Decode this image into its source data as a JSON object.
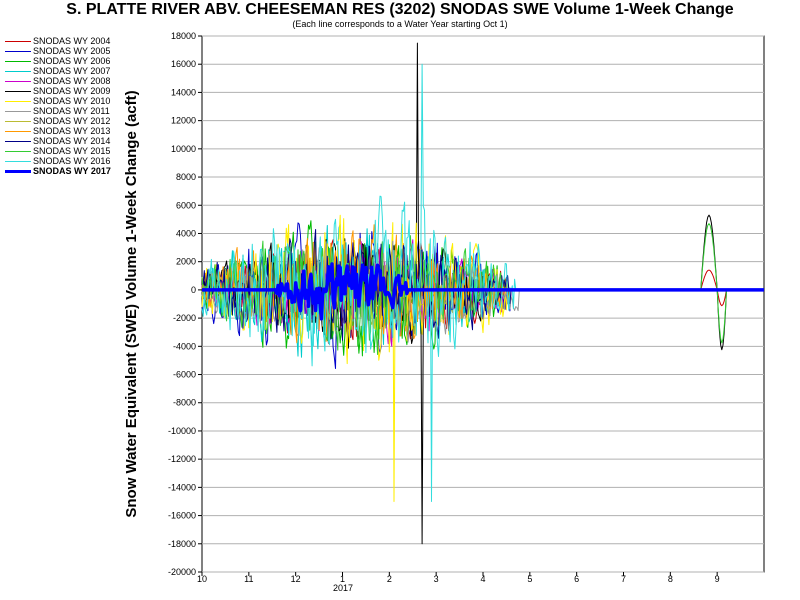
{
  "chart_data": {
    "type": "line",
    "title": "S. PLATTE RIVER ABV. CHEESEMAN RES (3202) SNODAS SWE Volume 1-Week Change",
    "subtitle": "(Each line corresponds to a Water Year starting Oct 1)",
    "ylabel": "Snow Water Equivalent (SWE) Volume 1-Week Change (acft)",
    "xlabel": "",
    "ylim": [
      -20000,
      18000
    ],
    "yticks": [
      18000,
      16000,
      14000,
      12000,
      10000,
      8000,
      6000,
      4000,
      2000,
      0,
      -2000,
      -4000,
      -6000,
      -8000,
      -10000,
      -12000,
      -14000,
      -16000,
      -18000,
      -20000
    ],
    "ytick_labels": [
      "18000",
      "16000",
      "14000",
      "12000",
      "10000",
      "8000",
      "6000",
      "4000",
      "2000",
      "0",
      "-2000",
      "-4000",
      "-6000",
      "-8000",
      "-10000",
      "-12000",
      "-14000",
      "-16000",
      "-18000",
      "-20000"
    ],
    "xlim": [
      10,
      22
    ],
    "xticks": [
      10,
      11,
      12,
      13,
      14,
      15,
      16,
      17,
      18,
      19,
      20,
      21
    ],
    "xtick_labels": [
      "10",
      "11",
      "12",
      "1",
      "2",
      "3",
      "4",
      "5",
      "6",
      "7",
      "8",
      "9"
    ],
    "x_year_label": "2017",
    "grid": true,
    "legend_position": "left",
    "series": [
      {
        "name": "SNODAS WY 2004",
        "color": "#cc0000",
        "width": 1,
        "amp": 4000,
        "seed": 11,
        "end": 16.4,
        "bump": 1400
      },
      {
        "name": "SNODAS WY 2005",
        "color": "#0000cc",
        "width": 1,
        "amp": 5000,
        "seed": 22,
        "end": 16.6,
        "bump": 0
      },
      {
        "name": "SNODAS WY 2006",
        "color": "#00bb00",
        "width": 1,
        "amp": 5000,
        "seed": 33,
        "end": 16.5,
        "bump": 0
      },
      {
        "name": "SNODAS WY 2007",
        "color": "#00cccc",
        "width": 1,
        "amp": 5000,
        "seed": 44,
        "end": 16.2,
        "bump": 0
      },
      {
        "name": "SNODAS WY 2008",
        "color": "#cc00cc",
        "width": 1,
        "amp": 3600,
        "seed": 55,
        "end": 16.6,
        "bump": 0
      },
      {
        "name": "SNODAS WY 2009",
        "color": "#000000",
        "width": 1,
        "amp": 4000,
        "seed": 66,
        "end": 16.3,
        "bump": 5300,
        "spike": [
          [
            14.6,
            17500
          ],
          [
            14.7,
            -18000
          ]
        ]
      },
      {
        "name": "SNODAS WY 2010",
        "color": "#ffee00",
        "width": 1,
        "amp": 5500,
        "seed": 77,
        "end": 16.6,
        "bump": 0,
        "spike": [
          [
            14.1,
            -15000
          ]
        ]
      },
      {
        "name": "SNODAS WY 2011",
        "color": "#999999",
        "width": 1,
        "amp": 3600,
        "seed": 88,
        "end": 16.8,
        "bump": 0
      },
      {
        "name": "SNODAS WY 2012",
        "color": "#bbbb33",
        "width": 1,
        "amp": 3000,
        "seed": 99,
        "end": 15.6,
        "bump": 0
      },
      {
        "name": "SNODAS WY 2013",
        "color": "#ff9900",
        "width": 1,
        "amp": 4500,
        "seed": 111,
        "end": 16.5,
        "bump": 0
      },
      {
        "name": "SNODAS WY 2014",
        "color": "#000088",
        "width": 1,
        "amp": 4500,
        "seed": 122,
        "end": 16.6,
        "bump": 0
      },
      {
        "name": "SNODAS WY 2015",
        "color": "#33cc33",
        "width": 1,
        "amp": 4500,
        "seed": 133,
        "end": 16.4,
        "bump": 4700
      },
      {
        "name": "SNODAS WY 2016",
        "color": "#33dddd",
        "width": 1,
        "amp": 6000,
        "seed": 144,
        "end": 16.7,
        "bump": 0,
        "spike": [
          [
            14.7,
            16000
          ],
          [
            14.9,
            -15000
          ]
        ]
      },
      {
        "name": "SNODAS WY 2017",
        "color": "#0000ff",
        "width": 3.5,
        "amp": 2200,
        "seed": 155,
        "start": 11.6,
        "end": 14.4,
        "bump": 0
      }
    ]
  }
}
